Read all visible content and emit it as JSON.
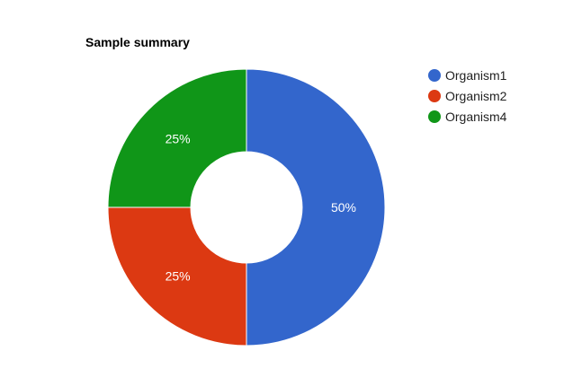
{
  "chart_data": {
    "type": "pie",
    "donut": true,
    "title": "Sample summary",
    "legend_position": "right",
    "slices": [
      {
        "label": "Organism1",
        "value": 50,
        "percent_label": "50%",
        "color": "#3366cc"
      },
      {
        "label": "Organism2",
        "value": 25,
        "percent_label": "25%",
        "color": "#dc3912"
      },
      {
        "label": "Organism4",
        "value": 25,
        "percent_label": "25%",
        "color": "#109618"
      }
    ]
  }
}
